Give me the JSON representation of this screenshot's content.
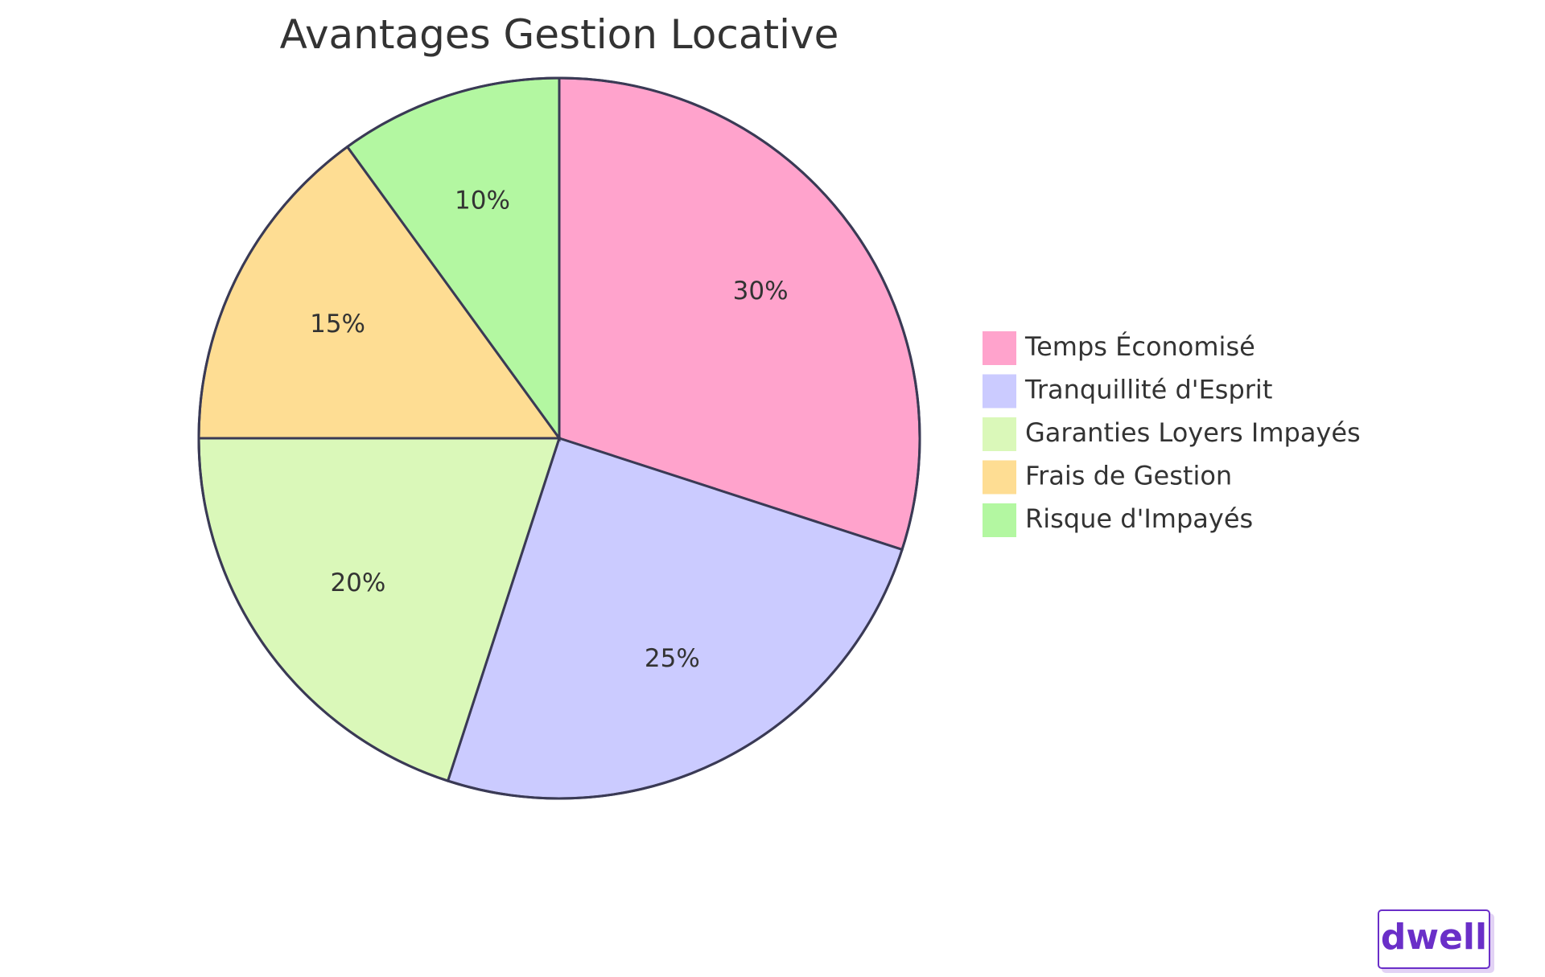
{
  "chart_data": {
    "type": "pie",
    "title": "Avantages Gestion Locative",
    "slices": [
      {
        "label": "Temps Économisé",
        "value": 30,
        "display": "30%",
        "color": "#FFA3CC"
      },
      {
        "label": "Tranquillité d'Esprit",
        "value": 25,
        "display": "25%",
        "color": "#CBCBFF"
      },
      {
        "label": "Garanties Loyers Impayés",
        "value": 20,
        "display": "20%",
        "color": "#DAF8B9"
      },
      {
        "label": "Frais de Gestion",
        "value": 15,
        "display": "15%",
        "color": "#FEDD93"
      },
      {
        "label": "Risque d'Impayés",
        "value": 10,
        "display": "10%",
        "color": "#B3F7A1"
      }
    ],
    "legend_position": "right"
  },
  "logo": {
    "text": "dwell",
    "color": "#6A2FC8"
  }
}
